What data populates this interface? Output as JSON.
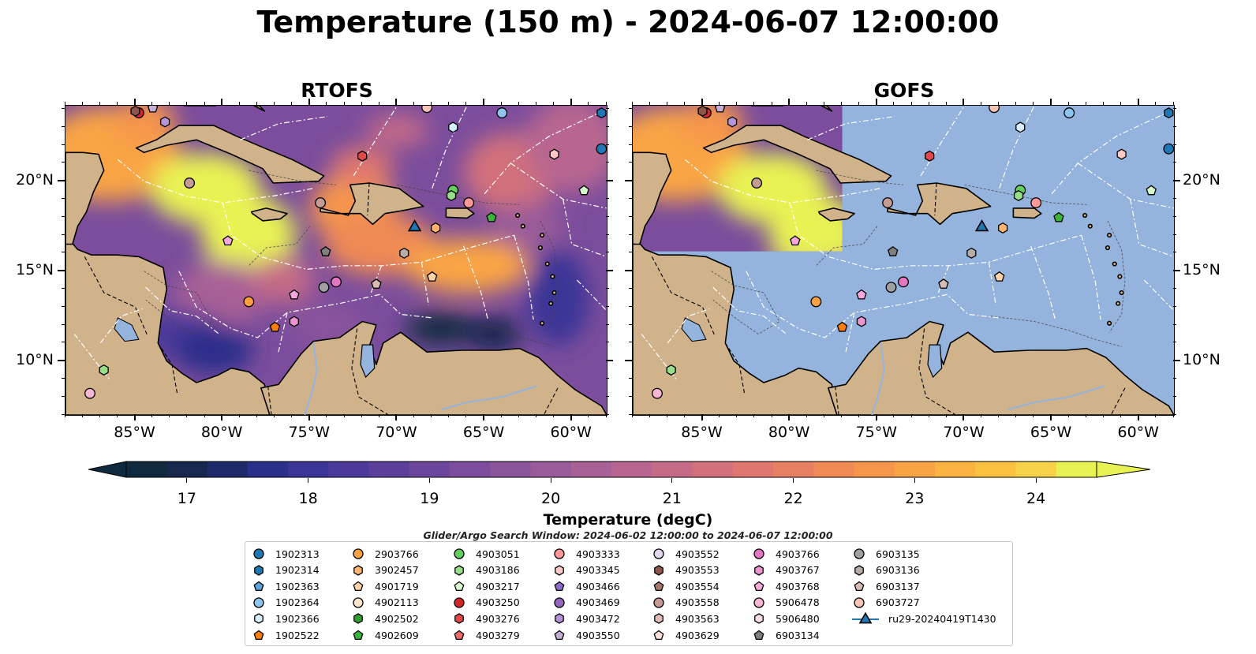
{
  "title": "Temperature (150 m) - 2024-06-07 12:00:00",
  "panels": [
    {
      "title": "RTOFS",
      "field_coverage": "full"
    },
    {
      "title": "GOFS",
      "field_coverage": "partial (northwest only)"
    }
  ],
  "axes": {
    "x_ticks": [
      "85°W",
      "80°W",
      "75°W",
      "70°W",
      "65°W",
      "60°W"
    ],
    "x_tick_values": [
      -85,
      -80,
      -75,
      -70,
      -65,
      -60
    ],
    "y_ticks": [
      "20°N",
      "15°N",
      "10°N"
    ],
    "y_tick_values": [
      20,
      15,
      10
    ],
    "lon_range": [
      -89,
      -58
    ],
    "lat_range": [
      7,
      24.2
    ]
  },
  "colorbar": {
    "label": "Temperature (degC)",
    "ticks": [
      "17",
      "18",
      "19",
      "20",
      "21",
      "22",
      "23",
      "24"
    ],
    "tick_values": [
      17,
      18,
      19,
      20,
      21,
      22,
      23,
      24
    ],
    "range": [
      16.5,
      24.5
    ],
    "extend": "both",
    "colors": [
      "#0f2a3e",
      "#16284d",
      "#1e2a6a",
      "#2a2f8a",
      "#3a3596",
      "#4b3a9a",
      "#5c3f9b",
      "#6c469c",
      "#7b4d9c",
      "#8a549b",
      "#995b99",
      "#a86196",
      "#b86690",
      "#c56b87",
      "#d2717c",
      "#de7770",
      "#e77f62",
      "#ef8a55",
      "#f5964b",
      "#f9a444",
      "#fbb341",
      "#fbc242",
      "#f8d248",
      "#e8f252"
    ]
  },
  "search_window": "Glider/Argo Search Window: 2024-06-02 12:00:00 to 2024-06-07 12:00:00",
  "legend": [
    {
      "label": "1902313",
      "marker": "circle",
      "color": "#1f77b4"
    },
    {
      "label": "1902314",
      "marker": "hexagon",
      "color": "#1f77b4"
    },
    {
      "label": "1902363",
      "marker": "pentagon",
      "color": "#5ba3d9"
    },
    {
      "label": "1902364",
      "marker": "circle",
      "color": "#8ec5ee"
    },
    {
      "label": "1902366",
      "marker": "hexagon",
      "color": "#d8eefc"
    },
    {
      "label": "1902522",
      "marker": "pentagon",
      "color": "#ff7f0e"
    },
    {
      "label": "2903766",
      "marker": "circle",
      "color": "#ffa043"
    },
    {
      "label": "3902457",
      "marker": "hexagon",
      "color": "#ffb46e"
    },
    {
      "label": "4901719",
      "marker": "pentagon",
      "color": "#ffd3a8"
    },
    {
      "label": "4902113",
      "marker": "circle",
      "color": "#ffe6cc"
    },
    {
      "label": "4902502",
      "marker": "hexagon",
      "color": "#2ca02c"
    },
    {
      "label": "4902609",
      "marker": "pentagon",
      "color": "#3cb43c"
    },
    {
      "label": "4903051",
      "marker": "circle",
      "color": "#63cf5e"
    },
    {
      "label": "4903186",
      "marker": "hexagon",
      "color": "#98df8a"
    },
    {
      "label": "4903217",
      "marker": "pentagon",
      "color": "#d7f7cf"
    },
    {
      "label": "4903250",
      "marker": "circle",
      "color": "#d62728"
    },
    {
      "label": "4903276",
      "marker": "hexagon",
      "color": "#e04a4a"
    },
    {
      "label": "4903279",
      "marker": "pentagon",
      "color": "#ee6b6b"
    },
    {
      "label": "4903333",
      "marker": "circle",
      "color": "#ff9896"
    },
    {
      "label": "4903345",
      "marker": "hexagon",
      "color": "#ffc8c7"
    },
    {
      "label": "4903466",
      "marker": "pentagon",
      "color": "#8c6bc8"
    },
    {
      "label": "4903469",
      "marker": "circle",
      "color": "#9467bd"
    },
    {
      "label": "4903472",
      "marker": "hexagon",
      "color": "#b495d6"
    },
    {
      "label": "4903550",
      "marker": "pentagon",
      "color": "#c5b0d5"
    },
    {
      "label": "4903552",
      "marker": "circle",
      "color": "#e2d6ee"
    },
    {
      "label": "4903553",
      "marker": "hexagon",
      "color": "#8c564b"
    },
    {
      "label": "4903554",
      "marker": "pentagon",
      "color": "#a87569"
    },
    {
      "label": "4903558",
      "marker": "circle",
      "color": "#c49c94"
    },
    {
      "label": "4903563",
      "marker": "hexagon",
      "color": "#e3beb6"
    },
    {
      "label": "4903629",
      "marker": "pentagon",
      "color": "#fde0da"
    },
    {
      "label": "4903766",
      "marker": "circle",
      "color": "#e377c2"
    },
    {
      "label": "4903767",
      "marker": "hexagon",
      "color": "#ec94cf"
    },
    {
      "label": "4903768",
      "marker": "pentagon",
      "color": "#f5a8db"
    },
    {
      "label": "5906478",
      "marker": "circle",
      "color": "#f7b6d2"
    },
    {
      "label": "5906480",
      "marker": "hexagon",
      "color": "#fcdcec"
    },
    {
      "label": "6903134",
      "marker": "pentagon",
      "color": "#7f7f7f"
    },
    {
      "label": "6903135",
      "marker": "circle",
      "color": "#a0a0a0"
    },
    {
      "label": "6903136",
      "marker": "hexagon",
      "color": "#b8aca8"
    },
    {
      "label": "6903137",
      "marker": "pentagon",
      "color": "#d6bcb3"
    },
    {
      "label": "6903727",
      "marker": "circle",
      "color": "#f6c5b5"
    },
    {
      "label": "ru29-20240419T1430",
      "marker": "triangle",
      "color": "#1f77b4"
    }
  ],
  "platforms": [
    {
      "id": "1902313",
      "lon": -58.3,
      "lat": 21.8
    },
    {
      "id": "1902314",
      "lon": -58.3,
      "lat": 23.8
    },
    {
      "id": "1902364",
      "lon": -64.0,
      "lat": 23.8
    },
    {
      "id": "1902366",
      "lon": -66.8,
      "lat": 23.0
    },
    {
      "id": "4903345",
      "lon": -61.0,
      "lat": 21.5
    },
    {
      "id": "4903217",
      "lon": -59.3,
      "lat": 19.5
    },
    {
      "id": "4903276",
      "lon": -72.0,
      "lat": 21.4
    },
    {
      "id": "4903250",
      "lon": -84.8,
      "lat": 23.8
    },
    {
      "id": "4903553",
      "lon": -85.0,
      "lat": 23.9
    },
    {
      "id": "4903472",
      "lon": -83.3,
      "lat": 23.3
    },
    {
      "id": "4903550",
      "lon": -84.0,
      "lat": 24.1
    },
    {
      "id": "6903727",
      "lon": -68.3,
      "lat": 24.1
    },
    {
      "id": "4903558",
      "lon": -81.9,
      "lat": 19.9
    },
    {
      "id": "4903558b",
      "lon": -74.4,
      "lat": 18.8
    },
    {
      "id": "4903051",
      "lon": -66.8,
      "lat": 19.5
    },
    {
      "id": "4903186",
      "lon": -66.9,
      "lat": 19.2
    },
    {
      "id": "4903333",
      "lon": -65.9,
      "lat": 18.8
    },
    {
      "id": "4902609",
      "lon": -64.6,
      "lat": 18.0
    },
    {
      "id": "3902457",
      "lon": -67.8,
      "lat": 17.4
    },
    {
      "id": "ru29-20240419T1430",
      "lon": -69.0,
      "lat": 17.5
    },
    {
      "id": "4903768",
      "lon": -79.7,
      "lat": 16.7
    },
    {
      "id": "6903134",
      "lon": -74.1,
      "lat": 16.1
    },
    {
      "id": "6903136",
      "lon": -69.6,
      "lat": 16.0
    },
    {
      "id": "4901719",
      "lon": -68.0,
      "lat": 14.7
    },
    {
      "id": "4903766",
      "lon": -73.5,
      "lat": 14.4
    },
    {
      "id": "6903135",
      "lon": -74.2,
      "lat": 14.1
    },
    {
      "id": "6903137",
      "lon": -71.2,
      "lat": 14.3
    },
    {
      "id": "4903768b",
      "lon": -75.9,
      "lat": 13.7
    },
    {
      "id": "2903766",
      "lon": -78.5,
      "lat": 13.3
    },
    {
      "id": "4903767",
      "lon": -75.9,
      "lat": 12.2
    },
    {
      "id": "1902522",
      "lon": -77.0,
      "lat": 11.9
    },
    {
      "id": "4903186b",
      "lon": -86.8,
      "lat": 9.5
    },
    {
      "id": "5906478",
      "lon": -87.6,
      "lat": 8.2
    }
  ]
}
